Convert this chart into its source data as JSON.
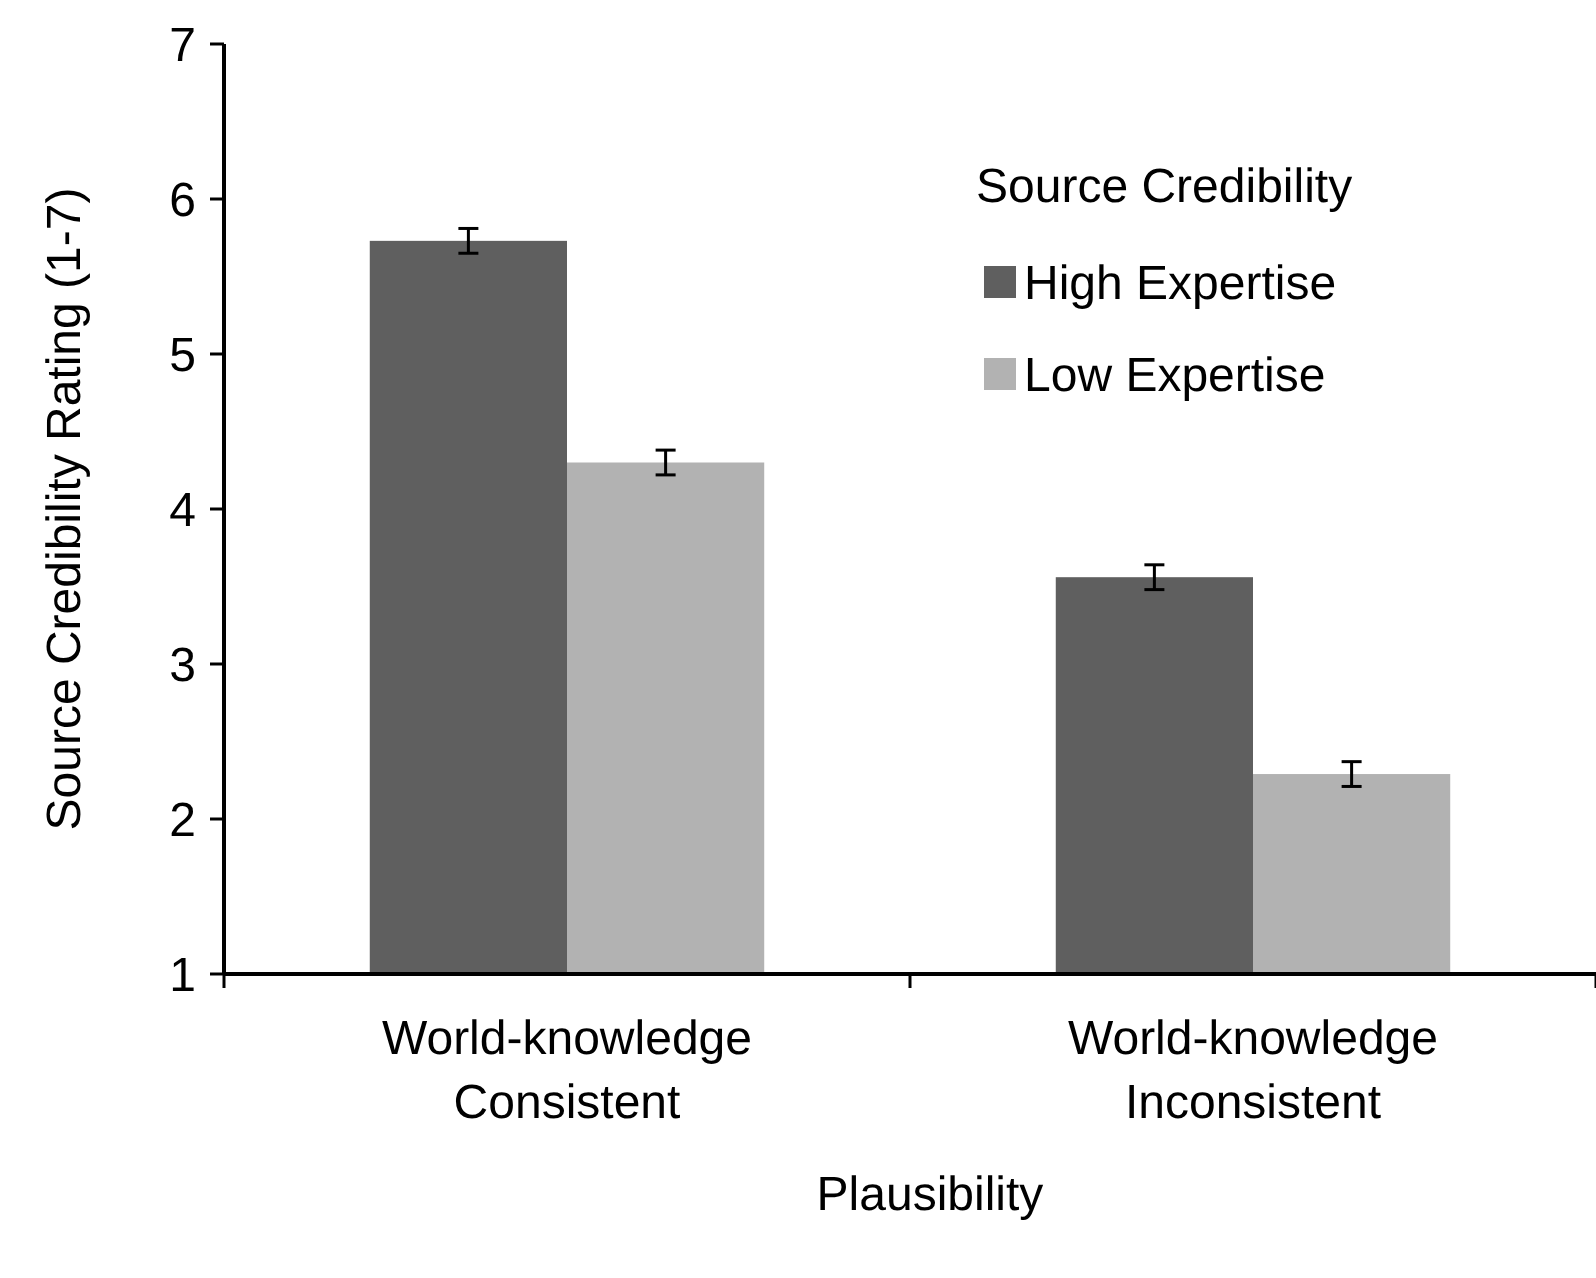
{
  "chart_data": {
    "type": "bar",
    "xlabel": "Plausibility",
    "ylabel": "Source Credibility Rating (1-7)",
    "legend_title": "Source Credibility",
    "categories": [
      "World-knowledge Consistent",
      "World-knowledge Inconsistent"
    ],
    "series": [
      {
        "name": "High Expertise",
        "color": "#5f5f5f",
        "values": [
          5.73,
          3.56
        ],
        "errors": [
          0.08,
          0.08
        ]
      },
      {
        "name": "Low Expertise",
        "color": "#b2b2b2",
        "values": [
          4.3,
          2.29
        ],
        "errors": [
          0.08,
          0.08
        ]
      }
    ],
    "ylim": [
      1,
      7
    ],
    "yticks": [
      1,
      2,
      3,
      4,
      5,
      6,
      7
    ],
    "grid": false,
    "legend": "top right"
  }
}
